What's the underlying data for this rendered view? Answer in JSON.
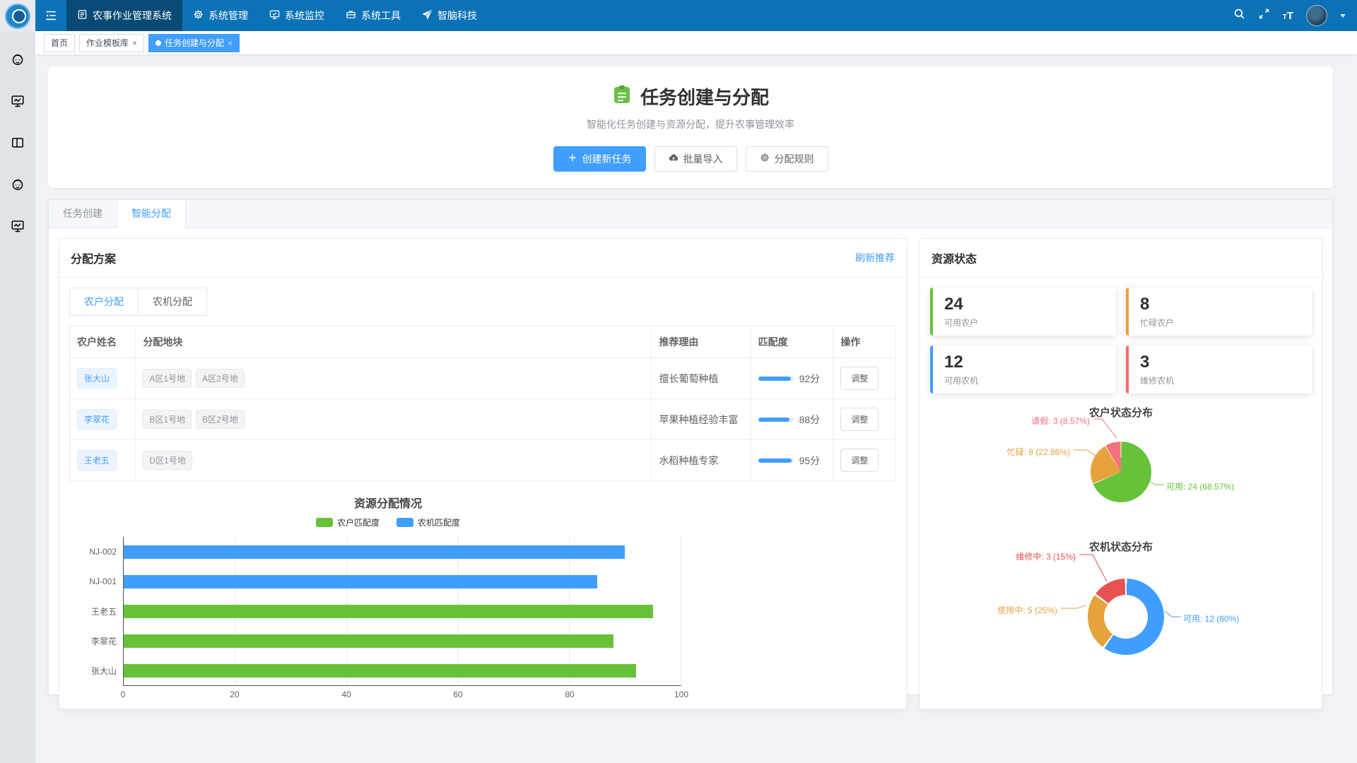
{
  "navbar": {
    "menu": [
      {
        "label": "农事作业管理系统",
        "icon": "form-icon",
        "active": true
      },
      {
        "label": "系统管理",
        "icon": "gear-icon",
        "active": false
      },
      {
        "label": "系统监控",
        "icon": "monitor-icon",
        "active": false
      },
      {
        "label": "系统工具",
        "icon": "toolbox-icon",
        "active": false
      },
      {
        "label": "智脑科技",
        "icon": "send-icon",
        "active": false
      }
    ]
  },
  "sidebar": {
    "icons": [
      "robot-icon",
      "monitor-chart-icon",
      "columns-icon",
      "robot-icon",
      "monitor-chart-icon"
    ]
  },
  "tagbar": {
    "tags": [
      {
        "label": "首页",
        "closable": false,
        "active": false,
        "dot": false
      },
      {
        "label": "作业模板库",
        "closable": true,
        "active": false,
        "dot": false
      },
      {
        "label": "任务创建与分配",
        "closable": true,
        "active": true,
        "dot": true
      }
    ]
  },
  "hero": {
    "title": "任务创建与分配",
    "subtitle": "智能化任务创建与资源分配，提升农事管理效率",
    "buttons": [
      {
        "label": "创建新任务",
        "icon": "plus-icon",
        "type": "primary"
      },
      {
        "label": "批量导入",
        "icon": "upload-icon",
        "type": "default"
      },
      {
        "label": "分配规则",
        "icon": "gear-icon",
        "type": "default"
      }
    ]
  },
  "main_tabs": [
    {
      "label": "任务创建",
      "active": false
    },
    {
      "label": "智能分配",
      "active": true
    }
  ],
  "allocation": {
    "title": "分配方案",
    "refresh_label": "刷新推荐",
    "tabs": [
      {
        "label": "农户分配",
        "active": true
      },
      {
        "label": "农机分配",
        "active": false
      }
    ],
    "table": {
      "columns": [
        "农户姓名",
        "分配地块",
        "推荐理由",
        "匹配度",
        "操作"
      ],
      "score_suffix": "分",
      "action_label": "调整",
      "rows": [
        {
          "name": "张大山",
          "plots": [
            "A区1号地",
            "A区2号地"
          ],
          "reason": "擅长葡萄种植",
          "score": 92
        },
        {
          "name": "李翠花",
          "plots": [
            "B区1号地",
            "B区2号地"
          ],
          "reason": "苹果种植经验丰富",
          "score": 88
        },
        {
          "name": "王老五",
          "plots": [
            "D区1号地"
          ],
          "reason": "水稻种植专家",
          "score": 95
        }
      ]
    }
  },
  "resources": {
    "title": "资源状态",
    "stats": [
      {
        "value": "24",
        "label": "可用农户",
        "color": "#67C23A"
      },
      {
        "value": "8",
        "label": "忙碌农户",
        "color": "#E6A23C"
      },
      {
        "value": "12",
        "label": "可用农机",
        "color": "#409EFF"
      },
      {
        "value": "3",
        "label": "维修农机",
        "color": "#F56C6C"
      }
    ]
  },
  "chart_data": [
    {
      "type": "bar",
      "orientation": "horizontal",
      "title": "资源分配情况",
      "categories": [
        "NJ-002",
        "NJ-001",
        "王老五",
        "李翠花",
        "张大山"
      ],
      "series": [
        {
          "name": "农户匹配度",
          "color": "#67C23A",
          "values": [
            null,
            null,
            95,
            88,
            92
          ]
        },
        {
          "name": "农机匹配度",
          "color": "#409EFF",
          "values": [
            90,
            85,
            null,
            null,
            null
          ]
        }
      ],
      "xlim": [
        0,
        100
      ],
      "xticks": [
        0,
        20,
        40,
        60,
        80,
        100
      ],
      "grid": true,
      "legend_position": "top"
    },
    {
      "type": "pie",
      "title": "农户状态分布",
      "slices": [
        {
          "label": "可用",
          "value": 24,
          "pct": "68.57%",
          "color": "#67C23A"
        },
        {
          "label": "忙碌",
          "value": 8,
          "pct": "22.86%",
          "color": "#E6A23C"
        },
        {
          "label": "请假",
          "value": 3,
          "pct": "8.57%",
          "color": "#F0737F"
        }
      ]
    },
    {
      "type": "pie",
      "subtype": "donut",
      "title": "农机状态分布",
      "slices": [
        {
          "label": "可用",
          "value": 12,
          "pct": "60%",
          "color": "#409EFF"
        },
        {
          "label": "使用中",
          "value": 5,
          "pct": "25%",
          "color": "#E6A23C"
        },
        {
          "label": "维修中",
          "value": 3,
          "pct": "15%",
          "color": "#E85252"
        }
      ]
    }
  ]
}
